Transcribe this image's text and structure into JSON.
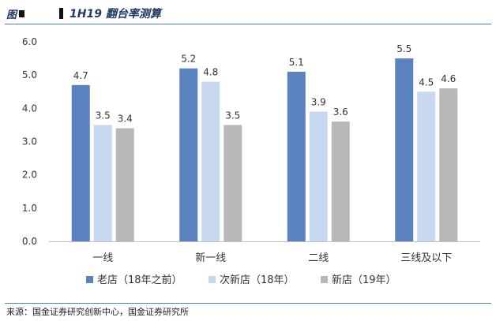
{
  "header": {
    "figure_prefix": "图",
    "title": "1H19 翻台率测算"
  },
  "source": "来源：国金证券研究创新中心，国金证券研究所",
  "colors": {
    "rule": "#4f7cbd",
    "title": "#1f3a66"
  },
  "chart_data": {
    "type": "bar",
    "categories": [
      "一线",
      "新一线",
      "二线",
      "三线及以下"
    ],
    "series": [
      {
        "name": "老店（18年之前）",
        "color": "#5a82bf",
        "values": [
          4.7,
          5.2,
          5.1,
          5.5
        ]
      },
      {
        "name": "次新店（18年）",
        "color": "#c6d7ef",
        "values": [
          3.5,
          4.8,
          3.9,
          4.5
        ]
      },
      {
        "name": "新店（19年）",
        "color": "#b8b8b8",
        "values": [
          3.4,
          3.5,
          3.6,
          4.6
        ]
      }
    ],
    "ylim": [
      0,
      6
    ],
    "yticks": [
      "0.0",
      "1.0",
      "2.0",
      "3.0",
      "4.0",
      "5.0",
      "6.0"
    ],
    "grid": false,
    "legend": "bottom",
    "data_labels": true
  }
}
